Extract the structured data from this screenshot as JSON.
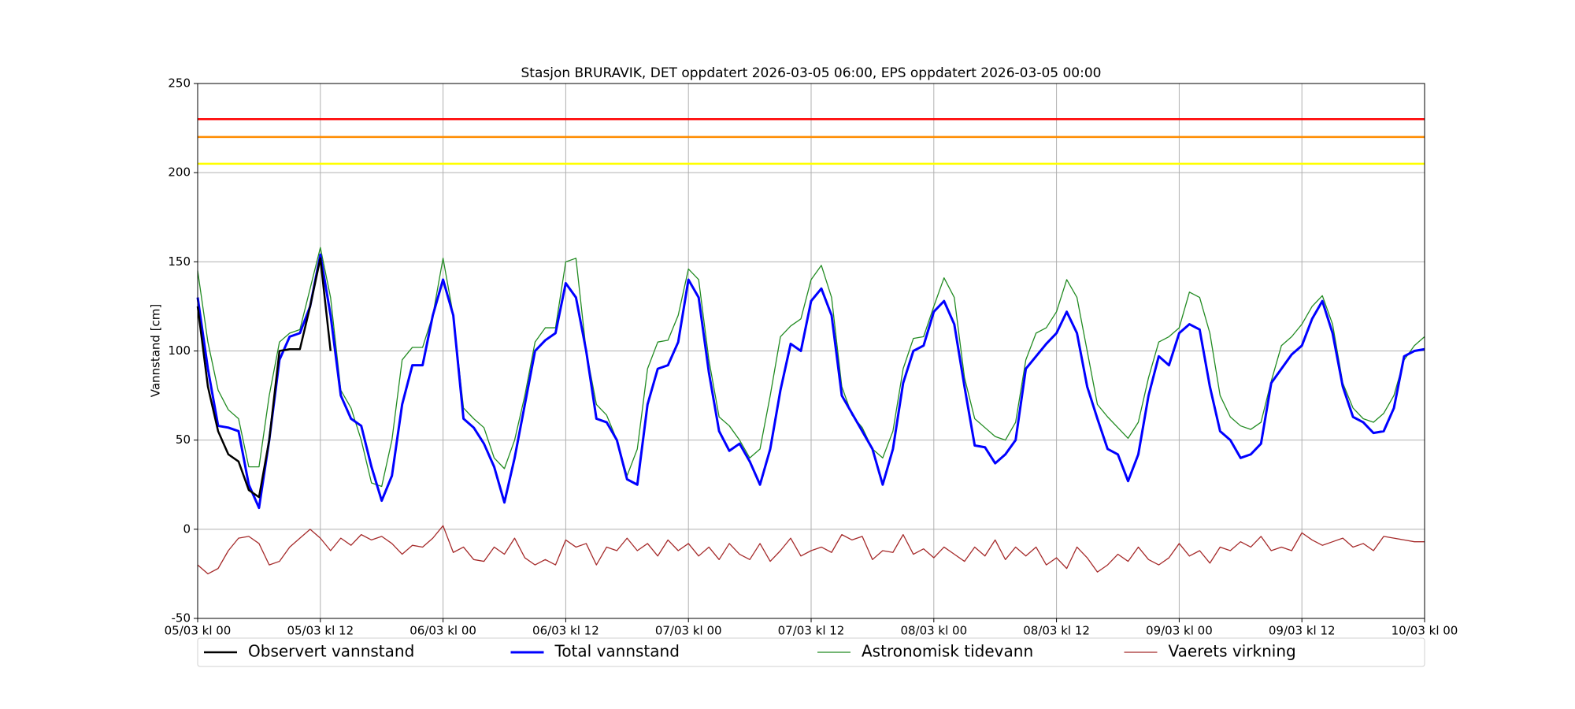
{
  "chart_data": {
    "type": "line",
    "title": "Stasjon BRURAVIK, DET oppdatert 2026-03-05 06:00, EPS oppdatert 2026-03-05 00:00",
    "y_label": "Vannstand [cm]",
    "x": [
      "05/03 kl 00",
      "05/03 kl 01",
      "05/03 kl 02",
      "05/03 kl 03",
      "05/03 kl 04",
      "05/03 kl 05",
      "05/03 kl 06",
      "05/03 kl 07",
      "05/03 kl 08",
      "05/03 kl 09",
      "05/03 kl 10",
      "05/03 kl 11",
      "05/03 kl 12",
      "05/03 kl 13",
      "05/03 kl 14",
      "05/03 kl 15",
      "05/03 kl 16",
      "05/03 kl 17",
      "05/03 kl 18",
      "05/03 kl 19",
      "05/03 kl 20",
      "05/03 kl 21",
      "05/03 kl 22",
      "05/03 kl 23",
      "06/03 kl 00",
      "06/03 kl 01",
      "06/03 kl 02",
      "06/03 kl 03",
      "06/03 kl 04",
      "06/03 kl 05",
      "06/03 kl 06",
      "06/03 kl 07",
      "06/03 kl 08",
      "06/03 kl 09",
      "06/03 kl 10",
      "06/03 kl 11",
      "06/03 kl 12",
      "06/03 kl 13",
      "06/03 kl 14",
      "06/03 kl 15",
      "06/03 kl 16",
      "06/03 kl 17",
      "06/03 kl 18",
      "06/03 kl 19",
      "06/03 kl 20",
      "06/03 kl 21",
      "06/03 kl 22",
      "06/03 kl 23",
      "07/03 kl 00",
      "07/03 kl 01",
      "07/03 kl 02",
      "07/03 kl 03",
      "07/03 kl 04",
      "07/03 kl 05",
      "07/03 kl 06",
      "07/03 kl 07",
      "07/03 kl 08",
      "07/03 kl 09",
      "07/03 kl 10",
      "07/03 kl 11",
      "07/03 kl 12",
      "07/03 kl 13",
      "07/03 kl 14",
      "07/03 kl 15",
      "07/03 kl 16",
      "07/03 kl 17",
      "07/03 kl 18",
      "07/03 kl 19",
      "07/03 kl 20",
      "07/03 kl 21",
      "07/03 kl 22",
      "07/03 kl 23",
      "08/03 kl 00",
      "08/03 kl 01",
      "08/03 kl 02",
      "08/03 kl 03",
      "08/03 kl 04",
      "08/03 kl 05",
      "08/03 kl 06",
      "08/03 kl 07",
      "08/03 kl 08",
      "08/03 kl 09",
      "08/03 kl 10",
      "08/03 kl 11",
      "08/03 kl 12",
      "08/03 kl 13",
      "08/03 kl 14",
      "08/03 kl 15",
      "08/03 kl 16",
      "08/03 kl 17",
      "08/03 kl 18",
      "08/03 kl 19",
      "08/03 kl 20",
      "08/03 kl 21",
      "08/03 kl 22",
      "08/03 kl 23",
      "09/03 kl 00",
      "09/03 kl 01",
      "09/03 kl 02",
      "09/03 kl 03",
      "09/03 kl 04",
      "09/03 kl 05",
      "09/03 kl 06",
      "09/03 kl 07",
      "09/03 kl 08",
      "09/03 kl 09",
      "09/03 kl 10",
      "09/03 kl 11",
      "09/03 kl 12",
      "09/03 kl 13",
      "09/03 kl 14",
      "09/03 kl 15",
      "09/03 kl 16",
      "09/03 kl 17",
      "09/03 kl 18",
      "09/03 kl 19",
      "09/03 kl 20",
      "09/03 kl 21",
      "09/03 kl 22",
      "09/03 kl 23",
      "10/03 kl 00"
    ],
    "series": [
      {
        "name": "Observert vannstand",
        "color": "#000000",
        "width": 2.5,
        "values": [
          125,
          80,
          55,
          42,
          38,
          22,
          18,
          50,
          100,
          101,
          101,
          125,
          152,
          100,
          null,
          null,
          null,
          null,
          null,
          null,
          null,
          null,
          null,
          null,
          null,
          null,
          null,
          null,
          null,
          null,
          null,
          null,
          null,
          null,
          null,
          null,
          null,
          null,
          null,
          null,
          null,
          null,
          null,
          null,
          null,
          null,
          null,
          null,
          null,
          null,
          null,
          null,
          null,
          null,
          null,
          null,
          null,
          null,
          null,
          null,
          null,
          null,
          null,
          null,
          null,
          null,
          null,
          null,
          null,
          null,
          null,
          null,
          null,
          null,
          null,
          null,
          null,
          null,
          null,
          null,
          null,
          null,
          null,
          null,
          null,
          null,
          null,
          null,
          null,
          null,
          null,
          null,
          null,
          null,
          null,
          null,
          null,
          null,
          null,
          null,
          null,
          null,
          null,
          null,
          null,
          null,
          null,
          null,
          null,
          null,
          null,
          null,
          null,
          null,
          null,
          null,
          null,
          null,
          null,
          null,
          null
        ]
      },
      {
        "name": "Total vannstand",
        "color": "#0000ff",
        "width": 3,
        "values": [
          130,
          90,
          58,
          57,
          55,
          25,
          12,
          50,
          95,
          108,
          110,
          125,
          154,
          120,
          75,
          62,
          58,
          35,
          16,
          30,
          70,
          92,
          92,
          120,
          140,
          120,
          62,
          57,
          48,
          35,
          15,
          40,
          70,
          100,
          106,
          110,
          138,
          130,
          100,
          62,
          60,
          50,
          28,
          25,
          70,
          90,
          92,
          105,
          140,
          130,
          88,
          55,
          44,
          48,
          38,
          25,
          45,
          78,
          104,
          100,
          128,
          135,
          120,
          75,
          65,
          55,
          45,
          25,
          45,
          82,
          100,
          103,
          122,
          128,
          115,
          80,
          47,
          46,
          37,
          42,
          50,
          90,
          97,
          104,
          110,
          122,
          110,
          80,
          62,
          45,
          42,
          27,
          42,
          75,
          97,
          92,
          110,
          115,
          112,
          80,
          55,
          50,
          40,
          42,
          48,
          82,
          90,
          98,
          103,
          118,
          128,
          110,
          80,
          63,
          60,
          54,
          55,
          68,
          97,
          100,
          101
        ]
      },
      {
        "name": "Astronomisk tidevann",
        "color": "#228b22",
        "width": 1.3,
        "values": [
          145,
          105,
          78,
          67,
          62,
          35,
          35,
          75,
          105,
          110,
          112,
          135,
          158,
          130,
          78,
          68,
          50,
          26,
          24,
          50,
          95,
          102,
          102,
          120,
          152,
          120,
          68,
          62,
          57,
          40,
          34,
          50,
          75,
          105,
          113,
          113,
          150,
          152,
          100,
          70,
          64,
          50,
          30,
          45,
          90,
          105,
          106,
          120,
          146,
          140,
          95,
          63,
          58,
          50,
          40,
          45,
          75,
          108,
          114,
          118,
          140,
          148,
          130,
          80,
          64,
          57,
          45,
          40,
          55,
          90,
          107,
          108,
          125,
          141,
          130,
          85,
          62,
          57,
          52,
          50,
          60,
          95,
          110,
          113,
          122,
          140,
          130,
          100,
          70,
          63,
          57,
          51,
          60,
          85,
          105,
          108,
          113,
          133,
          130,
          110,
          75,
          63,
          58,
          56,
          60,
          83,
          103,
          108,
          115,
          125,
          131,
          115,
          82,
          68,
          62,
          60,
          65,
          75,
          95,
          103,
          108
        ]
      },
      {
        "name": "Vaerets virkning",
        "color": "#a52a2a",
        "width": 1.3,
        "values": [
          -20,
          -25,
          -22,
          -12,
          -5,
          -4,
          -8,
          -20,
          -18,
          -10,
          -5,
          0,
          -5,
          -12,
          -5,
          -9,
          -3,
          -6,
          -4,
          -8,
          -14,
          -9,
          -10,
          -5,
          2,
          -13,
          -10,
          -17,
          -18,
          -10,
          -14,
          -5,
          -16,
          -20,
          -17,
          -20,
          -6,
          -10,
          -8,
          -20,
          -10,
          -12,
          -5,
          -12,
          -8,
          -15,
          -6,
          -12,
          -8,
          -15,
          -10,
          -17,
          -8,
          -14,
          -17,
          -8,
          -18,
          -12,
          -5,
          -15,
          -12,
          -10,
          -13,
          -3,
          -6,
          -4,
          -17,
          -12,
          -13,
          -3,
          -14,
          -11,
          -16,
          -10,
          -14,
          -18,
          -10,
          -15,
          -6,
          -17,
          -10,
          -15,
          -10,
          -20,
          -16,
          -22,
          -10,
          -16,
          -24,
          -20,
          -14,
          -18,
          -10,
          -17,
          -20,
          -16,
          -8,
          -15,
          -12,
          -19,
          -10,
          -12,
          -7,
          -10,
          -4,
          -12,
          -10,
          -12,
          -2,
          -6,
          -9,
          -7,
          -5,
          -10,
          -8,
          -12,
          -4,
          -5,
          -6,
          -7,
          -7
        ]
      }
    ],
    "hlines": [
      {
        "value": 230,
        "color": "#ff0000"
      },
      {
        "value": 220,
        "color": "#ff8c00"
      },
      {
        "value": 205,
        "color": "#ffff00"
      }
    ],
    "xlim": [
      "05/03 kl 00",
      "10/03 kl 00"
    ],
    "xticks": [
      "05/03 kl 00",
      "05/03 kl 12",
      "06/03 kl 00",
      "06/03 kl 12",
      "07/03 kl 00",
      "07/03 kl 12",
      "08/03 kl 00",
      "08/03 kl 12",
      "09/03 kl 00",
      "09/03 kl 12",
      "10/03 kl 00"
    ],
    "ylim": [
      -50,
      250
    ],
    "yticks": [
      -50,
      0,
      50,
      100,
      150,
      200,
      250
    ],
    "grid": true,
    "legend": "bottom"
  }
}
